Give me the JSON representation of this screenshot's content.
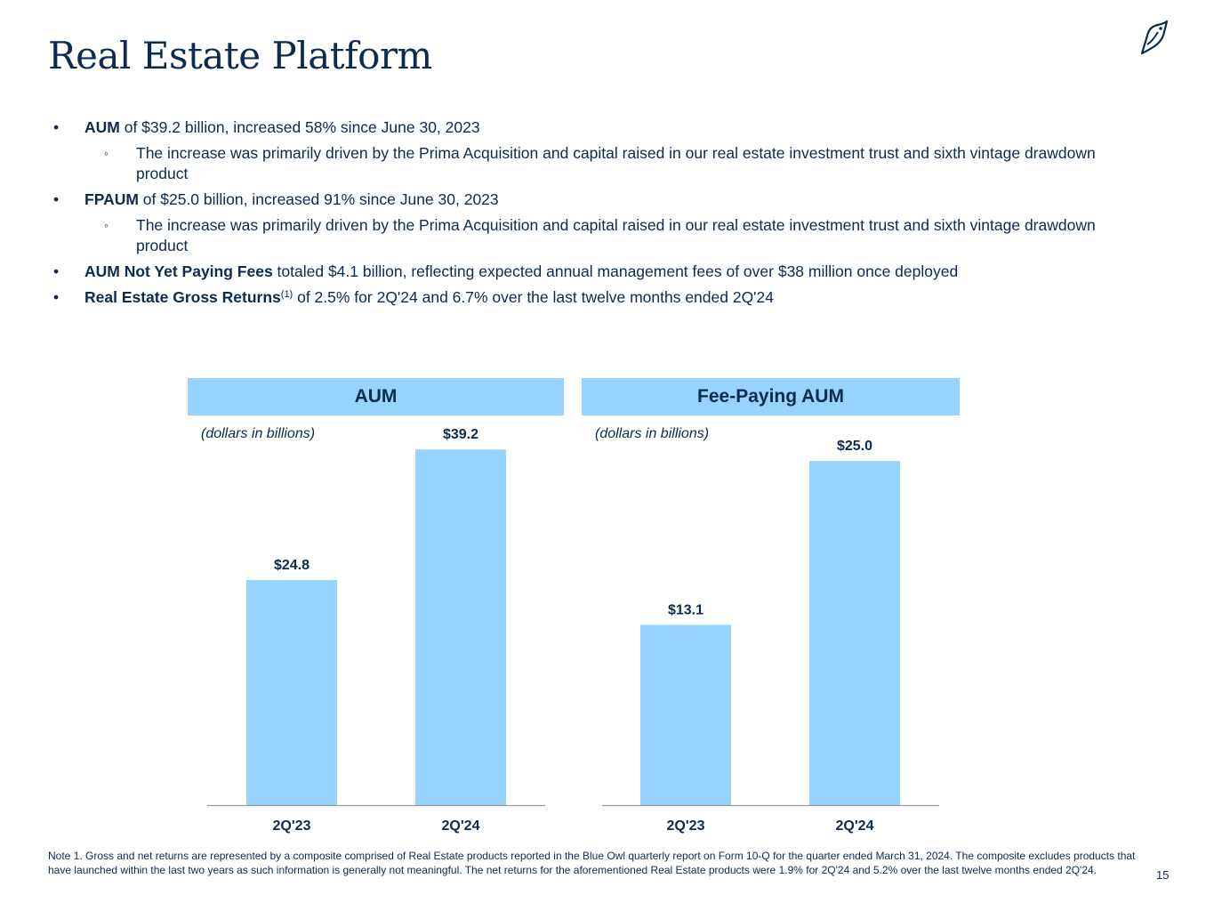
{
  "page": {
    "title": "Real Estate Platform",
    "page_number": "15",
    "logo_icon": "owl-logo-icon"
  },
  "bullets": [
    {
      "level": 1,
      "bold": "AUM",
      "sup": "",
      "text": " of $39.2 billion, increased 58% since June 30, 2023"
    },
    {
      "level": 2,
      "bold": "",
      "sup": "",
      "text": "The increase was primarily driven by the Prima Acquisition and capital raised in our real estate investment trust and sixth vintage drawdown product"
    },
    {
      "level": 1,
      "bold": "FPAUM",
      "sup": "",
      "text": " of $25.0 billion, increased 91% since June 30, 2023"
    },
    {
      "level": 2,
      "bold": "",
      "sup": "",
      "text": "The increase was primarily driven by the Prima Acquisition and capital raised in our real estate investment trust and sixth vintage drawdown product"
    },
    {
      "level": 1,
      "bold": "AUM Not Yet Paying Fees",
      "sup": "",
      "text": " totaled $4.1 billion, reflecting expected annual management fees of over $38 million once deployed"
    },
    {
      "level": 1,
      "bold": "Real Estate Gross Returns",
      "sup": "(1)",
      "text": " of 2.5% for 2Q'24 and 6.7% over the last twelve months ended 2Q'24"
    }
  ],
  "bullet_markers": {
    "level1": "•",
    "level2": "◦"
  },
  "colors": {
    "bar": "#96d3fd",
    "text": "#0d2a4f",
    "axis": "#9a9a9a"
  },
  "chart_data": [
    {
      "type": "bar",
      "title": "AUM",
      "units_note": "(dollars in billions)",
      "categories": [
        "2Q'23",
        "2Q'24"
      ],
      "values": [
        24.8,
        39.2
      ],
      "labels": [
        "$24.8",
        "$39.2"
      ],
      "ylim": [
        0,
        40.2
      ]
    },
    {
      "type": "bar",
      "title": "Fee-Paying AUM",
      "units_note": "(dollars in billions)",
      "categories": [
        "2Q'23",
        "2Q'24"
      ],
      "values": [
        13.1,
        25.0
      ],
      "labels": [
        "$13.1",
        "$25.0"
      ],
      "ylim": [
        0,
        26.5
      ]
    }
  ],
  "footnote": "Note 1. Gross and net returns are represented by a composite comprised of Real Estate products reported in the Blue Owl quarterly report on Form 10-Q for the quarter ended March 31, 2024. The composite excludes products that have launched within the last two years as such information is generally not meaningful. The net returns for the aforementioned Real Estate products were 1.9% for 2Q'24 and 5.2% over the last twelve months ended 2Q'24."
}
